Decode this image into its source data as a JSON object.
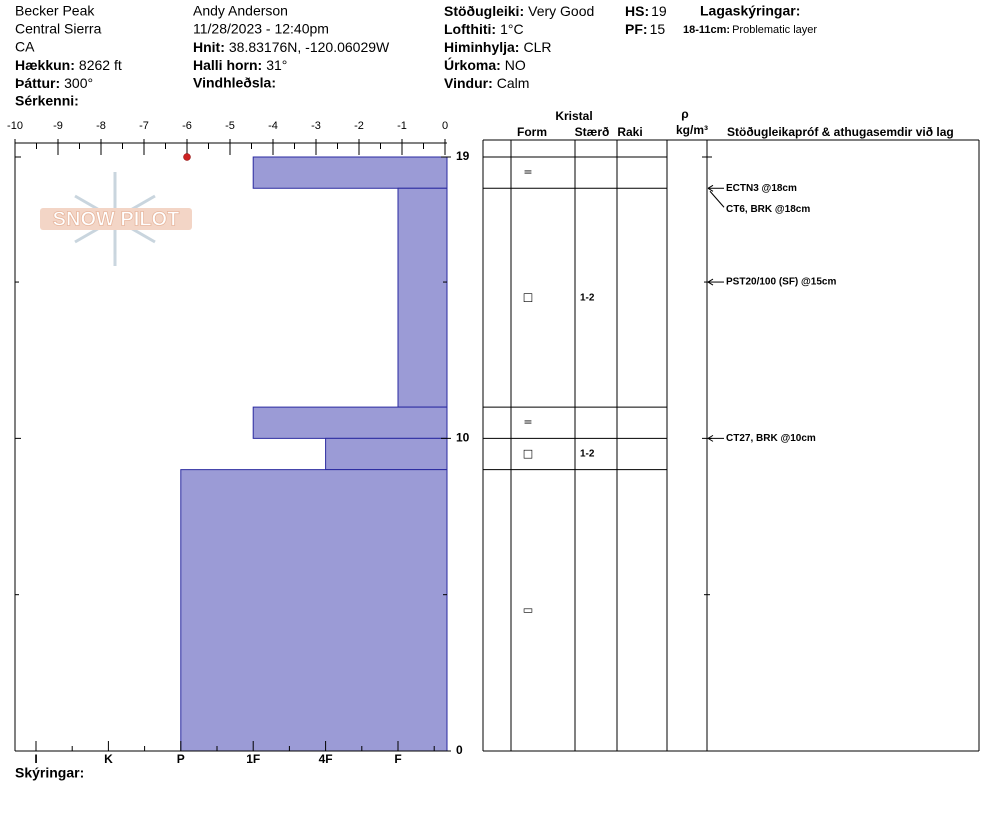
{
  "header": {
    "location": "Becker Peak",
    "range": "Central Sierra",
    "state": "CA",
    "elevation": {
      "label": "Hækkun:",
      "value": "8262 ft"
    },
    "aspect": {
      "label": "Þáttur:",
      "value": "300°"
    },
    "features": {
      "label": "Sérkenni:"
    },
    "observer": "Andy Anderson",
    "datetime": "11/28/2023 - 12:40pm",
    "coords": {
      "label": "Hnit:",
      "value": "38.83176N, -120.06029W"
    },
    "slope": {
      "label": "Halli horn:",
      "value": "31°"
    },
    "wind_loading": {
      "label": "Vindhleðsla:"
    },
    "stability": {
      "label": "Stöðugleiki:",
      "value": "Very Good"
    },
    "air_temp": {
      "label": "Lofthiti:",
      "value": "1°C"
    },
    "sky": {
      "label": "Himinhylja:",
      "value": "CLR"
    },
    "precip": {
      "label": "Úrkoma:",
      "value": "NO"
    },
    "wind": {
      "label": "Vindur:",
      "value": "Calm"
    },
    "hs": {
      "label": "HS:",
      "value": 19
    },
    "pf": {
      "label": "PF:",
      "value": 15
    },
    "layer_notes": {
      "title": "Lagaskýringar:",
      "items": [
        {
          "range": "18-11cm:",
          "text": "Problematic layer"
        }
      ]
    }
  },
  "logo": "SNOW PILOT",
  "chart_data": {
    "type": "snow-profile",
    "xlim": [
      -10,
      0
    ],
    "xticks": [
      -10,
      -9,
      -8,
      -7,
      -6,
      -5,
      -4,
      -3,
      -2,
      -1,
      0
    ],
    "temperature": [
      {
        "height": 19,
        "value": -6
      }
    ],
    "temperature_color": "#cc2222",
    "ylim": [
      0,
      19
    ],
    "yticks": [
      0,
      10,
      19
    ],
    "minor_yticks": [
      5,
      15
    ],
    "hardness_categories": [
      "I",
      "K",
      "P",
      "1F",
      "4F",
      "F"
    ],
    "layer_color": "#9b9bd6",
    "layers": [
      {
        "top": 19,
        "bottom": 18,
        "hardness": "1F",
        "form": "="
      },
      {
        "top": 18,
        "bottom": 11,
        "hardness": "F",
        "form": "□",
        "size": "1-2"
      },
      {
        "top": 11,
        "bottom": 10,
        "hardness": "1F",
        "form": "="
      },
      {
        "top": 10,
        "bottom": 9,
        "hardness": "4F",
        "form": "□",
        "size": "1-2"
      },
      {
        "top": 9,
        "bottom": 0,
        "hardness": "P",
        "form": "▭"
      }
    ],
    "columns": {
      "crystal": "Kristal",
      "form": "Form",
      "size": "Stærð",
      "moisture": "Raki",
      "density": "ρ",
      "density_unit": "kg/m³",
      "tests": "Stöðugleikapróf & athugasemdir við lag"
    },
    "tests": [
      {
        "height": 18,
        "text": "ECTN3 @18cm"
      },
      {
        "height": 18,
        "text": "CT6, BRK @18cm"
      },
      {
        "height": 15,
        "text": "PST20/100 (SF) @15cm"
      },
      {
        "height": 10,
        "text": "CT27, BRK @10cm"
      }
    ]
  },
  "footer": "Skýringar:"
}
